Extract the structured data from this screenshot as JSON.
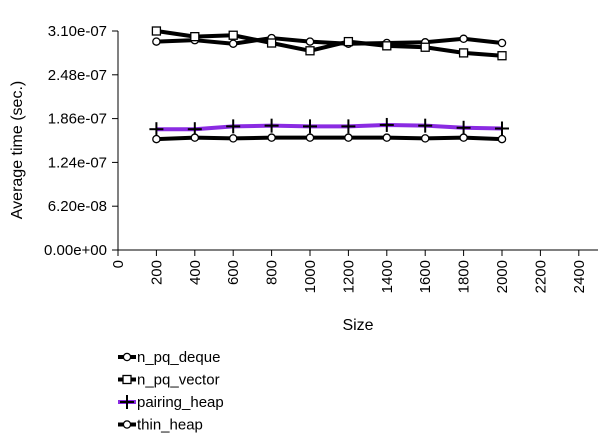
{
  "chart_data": {
    "type": "line",
    "title": "",
    "xlabel": "Size",
    "ylabel": "Average time (sec.)",
    "xlim": [
      0,
      2500
    ],
    "ylim": [
      0,
      3.1e-07
    ],
    "x_ticks": [
      0,
      200,
      400,
      600,
      800,
      1000,
      1200,
      1400,
      1600,
      1800,
      2000,
      2200,
      2400
    ],
    "x_tick_labels": [
      "0",
      "200",
      "400",
      "600",
      "800",
      "1000",
      "1200",
      "1400",
      "1600",
      "1800",
      "2000",
      "2200",
      "2400"
    ],
    "y_ticks": [
      0,
      6.2e-08,
      1.24e-07,
      1.86e-07,
      2.48e-07,
      3.1e-07
    ],
    "y_tick_labels": [
      "0.00e+00",
      "6.20e-08",
      "1.24e-07",
      "1.86e-07",
      "2.48e-07",
      "3.10e-07"
    ],
    "grid": false,
    "legend_position": "below",
    "x": [
      200,
      400,
      600,
      800,
      1000,
      1200,
      1400,
      1600,
      1800,
      2000
    ],
    "series": [
      {
        "name": "n_pq_deque",
        "marker": "circle",
        "color": "#000000",
        "values": [
          2.95e-07,
          2.97e-07,
          2.92e-07,
          3e-07,
          2.95e-07,
          2.92e-07,
          2.93e-07,
          2.94e-07,
          2.99e-07,
          2.93e-07
        ]
      },
      {
        "name": "n_pq_vector",
        "marker": "square",
        "color": "#000000",
        "values": [
          3.1e-07,
          3.02e-07,
          3.04e-07,
          2.93e-07,
          2.82e-07,
          2.95e-07,
          2.89e-07,
          2.87e-07,
          2.79e-07,
          2.75e-07
        ]
      },
      {
        "name": "pairing_heap",
        "marker": "plus",
        "color": "#8a2be2",
        "values": [
          1.71e-07,
          1.71e-07,
          1.75e-07,
          1.76e-07,
          1.75e-07,
          1.75e-07,
          1.77e-07,
          1.76e-07,
          1.73e-07,
          1.72e-07
        ]
      },
      {
        "name": "thin_heap",
        "marker": "circle",
        "color": "#000000",
        "values": [
          1.57e-07,
          1.59e-07,
          1.58e-07,
          1.59e-07,
          1.59e-07,
          1.59e-07,
          1.59e-07,
          1.58e-07,
          1.59e-07,
          1.57e-07
        ]
      }
    ]
  }
}
